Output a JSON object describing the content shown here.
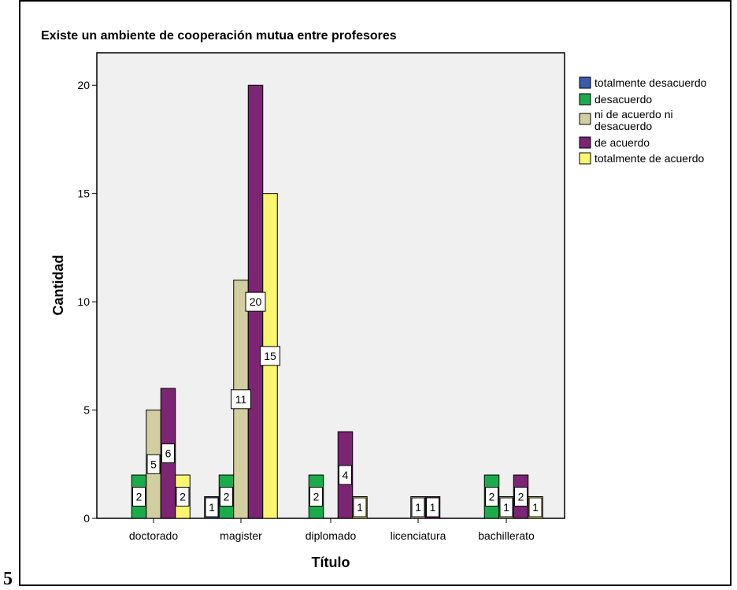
{
  "page_number": "5",
  "chart_data": {
    "type": "bar",
    "title": "Existe un ambiente de cooperación mutua entre profesores",
    "xlabel": "Título",
    "ylabel": "Cantidad",
    "categories": [
      "doctorado",
      "magister",
      "diplomado",
      "licenciatura",
      "bachillerato"
    ],
    "ylim": [
      0,
      21.5
    ],
    "yticks": [
      0,
      5,
      10,
      15,
      20
    ],
    "grid": false,
    "legend_position": "right",
    "series": [
      {
        "name": "totalmente desacuerdo",
        "color": "#3b5bab",
        "values": [
          0,
          1,
          0,
          0,
          0
        ],
        "labels": [
          "",
          "1",
          "",
          "",
          ""
        ]
      },
      {
        "name": "desacuerdo",
        "color": "#1cab4a",
        "values": [
          2,
          2,
          2,
          0,
          2
        ],
        "labels": [
          "2",
          "2",
          "2",
          "",
          "2"
        ]
      },
      {
        "name": "ni de acuerdo ni desacuerdo",
        "color": "#d3cea0",
        "values": [
          5,
          11,
          0,
          1,
          1
        ],
        "labels": [
          "5",
          "11",
          "",
          "1",
          "1"
        ]
      },
      {
        "name": "de acuerdo",
        "color": "#7b2574",
        "values": [
          6,
          20,
          4,
          1,
          2
        ],
        "labels": [
          "6",
          "20",
          "4",
          "1",
          "2"
        ]
      },
      {
        "name": "totalmente de acuerdo",
        "color": "#fbf66f",
        "values": [
          2,
          15,
          1,
          0,
          1
        ],
        "labels": [
          "2",
          "15",
          "1",
          "",
          "1"
        ]
      }
    ]
  }
}
